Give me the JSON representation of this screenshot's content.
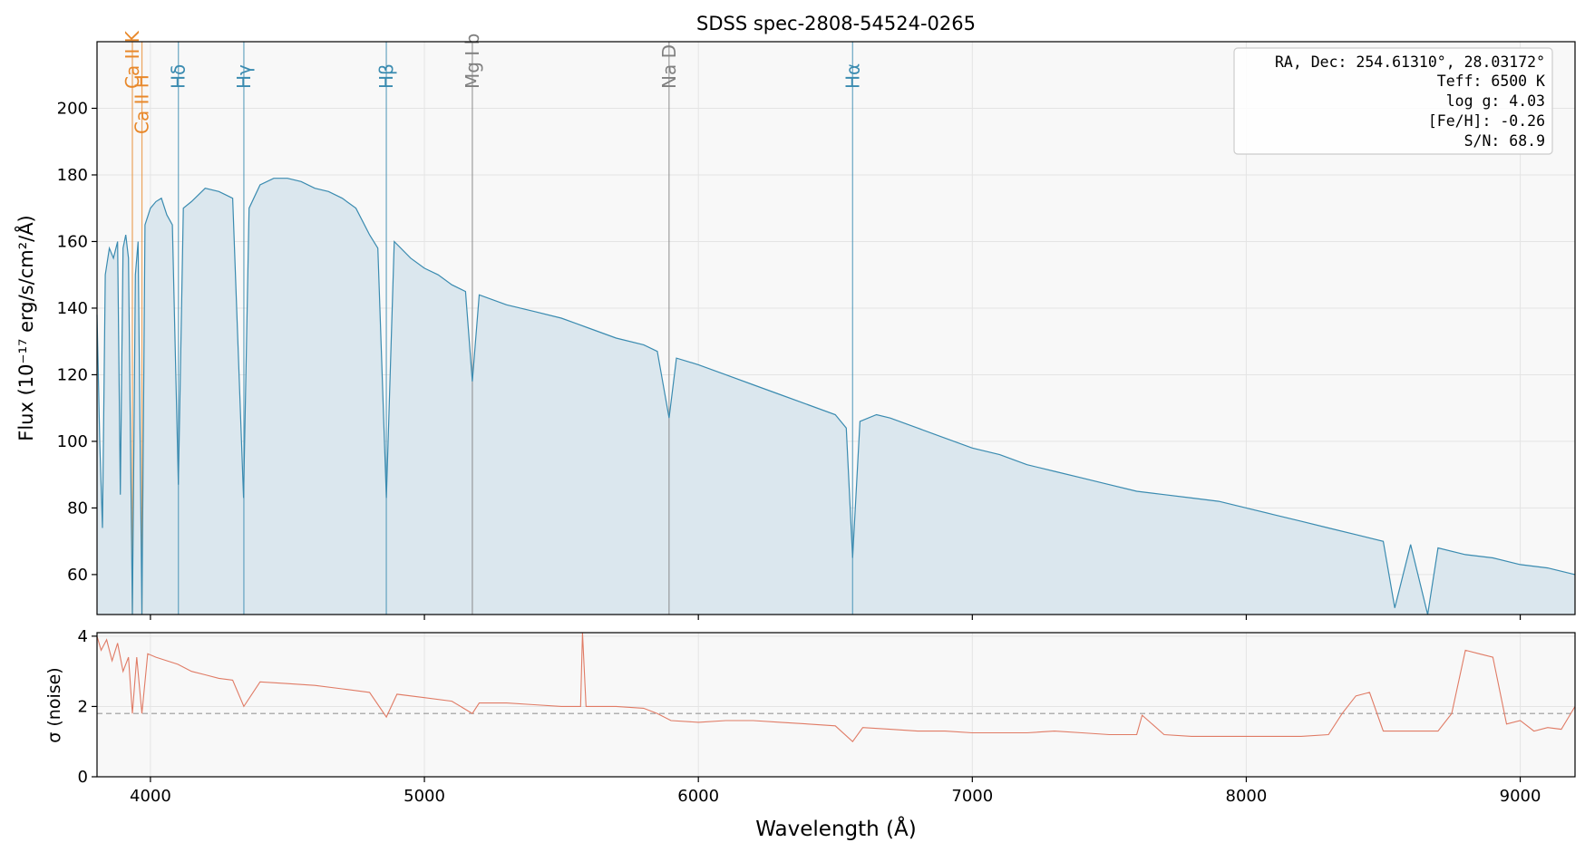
{
  "chart_data": [
    {
      "type": "line",
      "title": "SDSS spec-2808-54524-0265",
      "xlabel": "",
      "ylabel": "Flux (10⁻¹⁷ erg/s/cm²/Å)",
      "xlim": [
        3805,
        9200
      ],
      "ylim": [
        48,
        220
      ],
      "xticks": [
        4000,
        5000,
        6000,
        7000,
        8000,
        9000
      ],
      "xtick_labels": [
        "",
        "",
        "",
        "",
        "",
        ""
      ],
      "yticks": [
        60,
        80,
        100,
        120,
        140,
        160,
        180,
        200
      ],
      "ytick_labels": [
        "60",
        "80",
        "100",
        "120",
        "140",
        "160",
        "180",
        "200"
      ],
      "grid": true,
      "series": [
        {
          "color": "#3a8bb0",
          "fill": true,
          "x": [
            3805,
            3815,
            3825,
            3835,
            3850,
            3865,
            3880,
            3890,
            3900,
            3910,
            3920,
            3934,
            3945,
            3955,
            3969,
            3980,
            4000,
            4020,
            4040,
            4060,
            4080,
            4102,
            4120,
            4150,
            4200,
            4250,
            4300,
            4340,
            4360,
            4400,
            4450,
            4500,
            4550,
            4600,
            4650,
            4700,
            4750,
            4800,
            4830,
            4861,
            4890,
            4950,
            5000,
            5050,
            5100,
            5150,
            5175,
            5200,
            5300,
            5400,
            5500,
            5600,
            5700,
            5800,
            5850,
            5893,
            5920,
            6000,
            6100,
            6200,
            6300,
            6400,
            6500,
            6540,
            6563,
            6590,
            6650,
            6700,
            6800,
            6900,
            7000,
            7100,
            7200,
            7300,
            7400,
            7500,
            7600,
            7700,
            7800,
            7900,
            8000,
            8100,
            8200,
            8300,
            8400,
            8500,
            8542,
            8600,
            8662,
            8700,
            8800,
            8900,
            9000,
            9100,
            9200
          ],
          "y": [
            138,
            100,
            74,
            150,
            158,
            155,
            160,
            84,
            158,
            162,
            155,
            48,
            150,
            160,
            48,
            165,
            170,
            172,
            173,
            168,
            165,
            87,
            170,
            172,
            176,
            175,
            173,
            83,
            170,
            177,
            179,
            179,
            178,
            176,
            175,
            173,
            170,
            162,
            158,
            83,
            160,
            155,
            152,
            150,
            147,
            145,
            118,
            144,
            141,
            139,
            137,
            134,
            131,
            129,
            127,
            107,
            125,
            123,
            120,
            117,
            114,
            111,
            108,
            104,
            65,
            106,
            108,
            107,
            104,
            101,
            98,
            96,
            93,
            91,
            89,
            87,
            85,
            84,
            83,
            82,
            80,
            78,
            76,
            74,
            72,
            70,
            50,
            69,
            48,
            68,
            66,
            65,
            63,
            62,
            60
          ]
        }
      ],
      "line_markers": [
        {
          "label": "Ca II K",
          "x": 3934,
          "color": "#e8882a"
        },
        {
          "label": "Ca II H",
          "x": 3969,
          "color": "#e8882a"
        },
        {
          "label": "Hδ",
          "x": 4102,
          "color": "#3a8bb0"
        },
        {
          "label": "Hγ",
          "x": 4341,
          "color": "#3a8bb0"
        },
        {
          "label": "Hβ",
          "x": 4861,
          "color": "#3a8bb0"
        },
        {
          "label": "Mg I b",
          "x": 5175,
          "color": "#808080"
        },
        {
          "label": "Na D",
          "x": 5893,
          "color": "#808080"
        },
        {
          "label": "Hα",
          "x": 6563,
          "color": "#3a8bb0"
        }
      ],
      "annotation_box": [
        "RA, Dec: 254.61310°, 28.03172°",
        "Teff: 6500 K",
        "log g: 4.03",
        "[Fe/H]: -0.26",
        "S/N: 68.9"
      ]
    },
    {
      "type": "line",
      "title": "",
      "xlabel": "Wavelength (Å)",
      "ylabel": "σ (noise)",
      "xlim": [
        3805,
        9200
      ],
      "ylim": [
        0,
        4.1
      ],
      "xticks": [
        4000,
        5000,
        6000,
        7000,
        8000,
        9000
      ],
      "xtick_labels": [
        "4000",
        "5000",
        "6000",
        "7000",
        "8000",
        "9000"
      ],
      "yticks": [
        0,
        2,
        4
      ],
      "ytick_labels": [
        "0",
        "2",
        "4"
      ],
      "grid": true,
      "reference_line": {
        "y": 1.8,
        "style": "dashed",
        "color": "#999999"
      },
      "series": [
        {
          "color": "#e07b65",
          "fill": false,
          "x": [
            3805,
            3820,
            3840,
            3860,
            3880,
            3900,
            3920,
            3934,
            3950,
            3969,
            3990,
            4020,
            4060,
            4100,
            4150,
            4200,
            4250,
            4300,
            4341,
            4400,
            4500,
            4600,
            4700,
            4800,
            4861,
            4900,
            5000,
            5100,
            5175,
            5200,
            5300,
            5400,
            5500,
            5570,
            5577,
            5590,
            5700,
            5800,
            5850,
            5900,
            6000,
            6100,
            6200,
            6300,
            6400,
            6500,
            6563,
            6600,
            6700,
            6800,
            6900,
            7000,
            7100,
            7200,
            7300,
            7400,
            7500,
            7600,
            7620,
            7700,
            7800,
            7900,
            8000,
            8100,
            8200,
            8300,
            8350,
            8400,
            8450,
            8500,
            8600,
            8700,
            8750,
            8800,
            8850,
            8900,
            8950,
            9000,
            9050,
            9100,
            9150,
            9200
          ],
          "y": [
            4.0,
            3.6,
            3.9,
            3.3,
            3.8,
            3.0,
            3.4,
            1.8,
            3.4,
            1.8,
            3.5,
            3.4,
            3.3,
            3.2,
            3.0,
            2.9,
            2.8,
            2.75,
            2.0,
            2.7,
            2.65,
            2.6,
            2.5,
            2.4,
            1.7,
            2.35,
            2.25,
            2.15,
            1.8,
            2.1,
            2.1,
            2.05,
            2.0,
            2.0,
            4.1,
            2.0,
            2.0,
            1.95,
            1.8,
            1.6,
            1.55,
            1.6,
            1.6,
            1.55,
            1.5,
            1.45,
            1.0,
            1.4,
            1.35,
            1.3,
            1.3,
            1.25,
            1.25,
            1.25,
            1.3,
            1.25,
            1.2,
            1.2,
            1.75,
            1.2,
            1.15,
            1.15,
            1.15,
            1.15,
            1.15,
            1.2,
            1.8,
            2.3,
            2.4,
            1.3,
            1.3,
            1.3,
            1.8,
            3.6,
            3.5,
            3.4,
            1.5,
            1.6,
            1.3,
            1.4,
            1.35,
            2.0
          ]
        }
      ]
    }
  ]
}
